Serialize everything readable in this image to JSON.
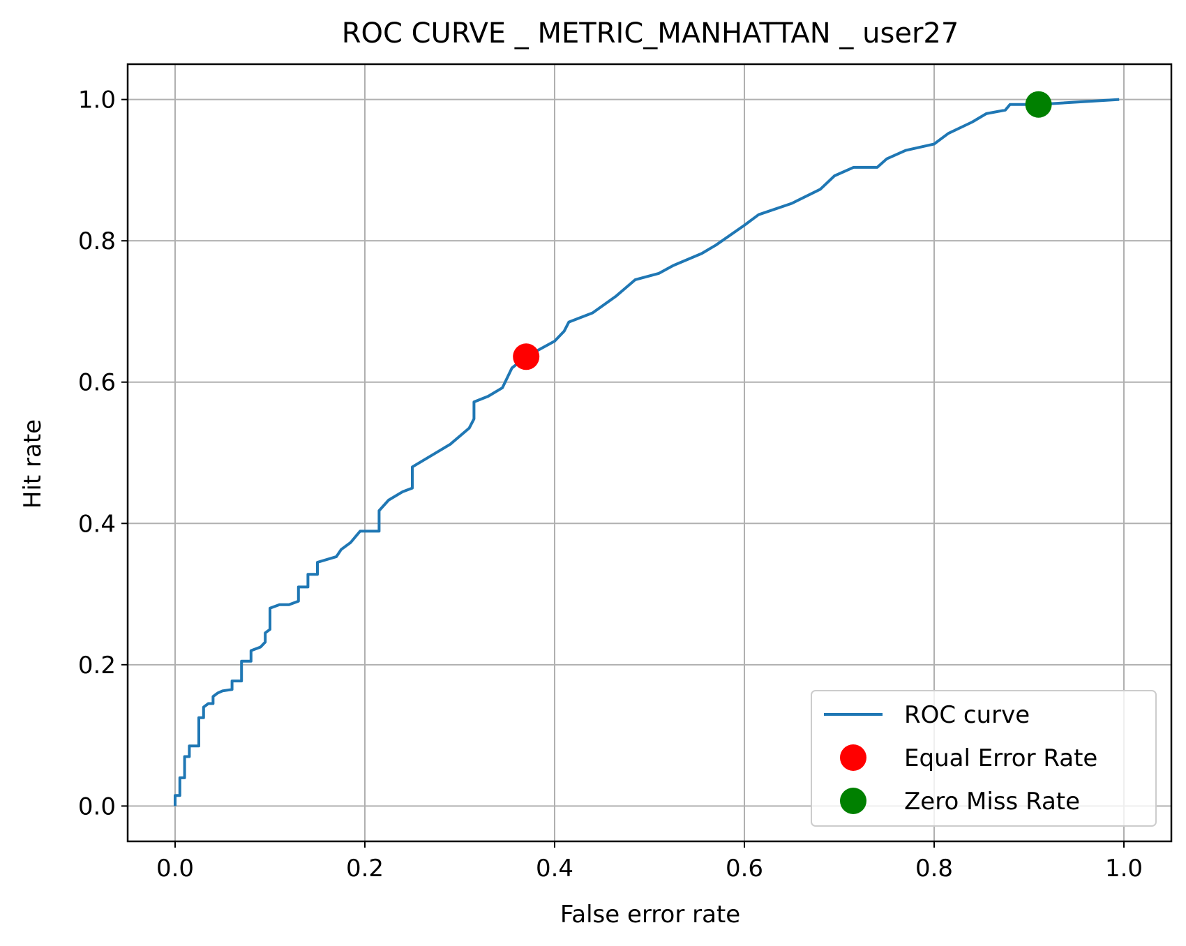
{
  "chart_data": {
    "type": "line",
    "title": "ROC CURVE _ METRIC_MANHATTAN _ user27",
    "xlabel": "False error rate",
    "ylabel": "Hit rate",
    "xlim": [
      -0.05,
      1.05
    ],
    "ylim": [
      -0.05,
      1.05
    ],
    "xticks": [
      0.0,
      0.2,
      0.4,
      0.6,
      0.8,
      1.0
    ],
    "xtick_labels": [
      "0.0",
      "0.2",
      "0.4",
      "0.6",
      "0.8",
      "1.0"
    ],
    "yticks": [
      0.0,
      0.2,
      0.4,
      0.6,
      0.8,
      1.0
    ],
    "ytick_labels": [
      "0.0",
      "0.2",
      "0.4",
      "0.6",
      "0.8",
      "1.0"
    ],
    "grid": true,
    "legend_position": "lower-right",
    "series": [
      {
        "name": "ROC curve",
        "kind": "line",
        "color": "#1f77b4",
        "x": [
          0.0,
          0.0,
          0.005,
          0.005,
          0.01,
          0.01,
          0.015,
          0.015,
          0.025,
          0.025,
          0.03,
          0.03,
          0.035,
          0.04,
          0.04,
          0.045,
          0.05,
          0.06,
          0.06,
          0.07,
          0.07,
          0.08,
          0.08,
          0.09,
          0.095,
          0.095,
          0.1,
          0.1,
          0.11,
          0.12,
          0.13,
          0.13,
          0.14,
          0.14,
          0.15,
          0.15,
          0.17,
          0.175,
          0.185,
          0.195,
          0.215,
          0.215,
          0.225,
          0.24,
          0.25,
          0.25,
          0.29,
          0.31,
          0.315,
          0.315,
          0.33,
          0.345,
          0.355,
          0.37,
          0.4,
          0.41,
          0.415,
          0.44,
          0.465,
          0.485,
          0.51,
          0.525,
          0.555,
          0.57,
          0.6,
          0.615,
          0.65,
          0.68,
          0.695,
          0.715,
          0.74,
          0.75,
          0.77,
          0.8,
          0.815,
          0.84,
          0.855,
          0.875,
          0.88,
          0.91,
          0.995
        ],
        "y": [
          0.0,
          0.015,
          0.015,
          0.04,
          0.04,
          0.07,
          0.07,
          0.085,
          0.085,
          0.125,
          0.125,
          0.14,
          0.145,
          0.145,
          0.155,
          0.16,
          0.163,
          0.165,
          0.177,
          0.177,
          0.205,
          0.205,
          0.22,
          0.225,
          0.232,
          0.245,
          0.25,
          0.28,
          0.285,
          0.285,
          0.29,
          0.31,
          0.31,
          0.328,
          0.328,
          0.345,
          0.353,
          0.363,
          0.373,
          0.389,
          0.389,
          0.418,
          0.433,
          0.445,
          0.45,
          0.48,
          0.512,
          0.535,
          0.548,
          0.572,
          0.58,
          0.592,
          0.62,
          0.636,
          0.658,
          0.672,
          0.685,
          0.698,
          0.722,
          0.745,
          0.754,
          0.765,
          0.782,
          0.794,
          0.822,
          0.837,
          0.853,
          0.873,
          0.892,
          0.904,
          0.904,
          0.916,
          0.928,
          0.937,
          0.952,
          0.968,
          0.98,
          0.985,
          0.993,
          0.993,
          1.0
        ]
      },
      {
        "name": "Equal Error Rate",
        "kind": "scatter",
        "color": "#ff0000",
        "x": [
          0.37
        ],
        "y": [
          0.636
        ]
      },
      {
        "name": "Zero Miss Rate",
        "kind": "scatter",
        "color": "#008000",
        "x": [
          0.91
        ],
        "y": [
          0.993
        ]
      }
    ]
  }
}
